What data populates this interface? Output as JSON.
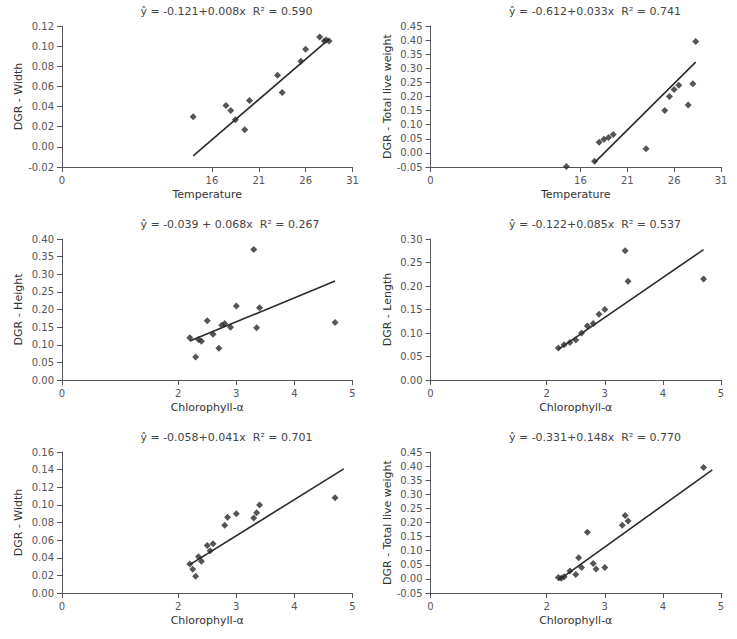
{
  "chart_data": [
    {
      "type": "scatter",
      "xlabel": "Temperature",
      "ylabel": "DGR - Width",
      "annotation": "ŷ = -0.121+0.008x  R² = 0.590",
      "xlim": [
        0,
        31
      ],
      "ylim": [
        -0.02,
        0.12
      ],
      "xticks": [
        0,
        16,
        21,
        26,
        31
      ],
      "yticks": [
        -0.02,
        {
          "value": 0,
          "label": "0.00"
        },
        0.02,
        0.04,
        0.06,
        0.08,
        {
          "value": 0.1,
          "label": "0.10"
        },
        0.12
      ],
      "grid": false,
      "series": [
        {
          "type": "line",
          "line_style": "solid",
          "color": "#2b2b2b",
          "x": [
            14.0,
            28.5
          ],
          "values": [
            -0.009,
            0.107
          ]
        },
        {
          "type": "scatter",
          "marker": "diamond",
          "color": "#2b2b2b",
          "x": [
            14.0,
            17.5,
            18.0,
            18.5,
            19.5,
            20.0,
            23.0,
            23.5,
            25.5,
            26.0,
            27.5,
            28.0,
            28.2,
            28.5
          ],
          "values": [
            0.03,
            0.041,
            0.036,
            0.027,
            0.017,
            0.046,
            0.071,
            0.054,
            0.085,
            0.097,
            0.109,
            0.105,
            0.106,
            0.105
          ]
        }
      ]
    },
    {
      "type": "scatter",
      "xlabel": "Temperature",
      "ylabel": "DGR - Total live weight",
      "annotation": "ŷ = -0.612+0.033x  R² = 0.741",
      "xlim": [
        0,
        31
      ],
      "ylim": [
        -0.05,
        0.45
      ],
      "xticks": [
        0,
        16,
        21,
        26,
        31
      ],
      "yticks": [
        -0.05,
        {
          "value": 0,
          "label": "0.00"
        },
        0.05,
        {
          "value": 0.1,
          "label": "0.10"
        },
        0.15,
        {
          "value": 0.2,
          "label": "0.20"
        },
        0.25,
        {
          "value": 0.3,
          "label": "0.30"
        },
        0.35,
        {
          "value": 0.4,
          "label": "0.40"
        },
        0.45
      ],
      "grid": false,
      "series": [
        {
          "type": "line",
          "line_style": "solid",
          "color": "#2b2b2b",
          "x": [
            17.5,
            28.3
          ],
          "values": [
            -0.0345,
            0.3219
          ]
        },
        {
          "type": "scatter",
          "marker": "diamond",
          "color": "#2b2b2b",
          "x": [
            14.5,
            17.5,
            18.0,
            18.5,
            19.0,
            19.5,
            23.0,
            25.0,
            25.5,
            26.0,
            26.5,
            27.5,
            28.0,
            28.3
          ],
          "values": [
            -0.048,
            -0.03,
            0.038,
            0.048,
            0.055,
            0.065,
            0.015,
            0.15,
            0.2,
            0.225,
            0.24,
            0.17,
            0.245,
            0.395
          ]
        }
      ]
    },
    {
      "type": "scatter",
      "xlabel": "Chlorophyll-α",
      "ylabel": "DGR - Height",
      "annotation": "ŷ = -0.039 + 0.068x  R² = 0.267",
      "xlim": [
        0,
        5
      ],
      "ylim": [
        0,
        0.4
      ],
      "xticks": [
        0,
        2,
        3,
        4,
        5
      ],
      "yticks": [
        {
          "value": 0,
          "label": "0.00"
        },
        0.05,
        {
          "value": 0.1,
          "label": "0.10"
        },
        0.15,
        {
          "value": 0.2,
          "label": "0.20"
        },
        0.25,
        {
          "value": 0.3,
          "label": "0.30"
        },
        0.35,
        {
          "value": 0.4,
          "label": "0.40"
        }
      ],
      "grid": false,
      "series": [
        {
          "type": "line",
          "line_style": "solid",
          "color": "#2b2b2b",
          "x": [
            2.2,
            4.7
          ],
          "values": [
            0.1106,
            0.2806
          ]
        },
        {
          "type": "scatter",
          "marker": "diamond",
          "color": "#2b2b2b",
          "x": [
            2.2,
            2.3,
            2.35,
            2.4,
            2.5,
            2.6,
            2.7,
            2.75,
            2.8,
            2.9,
            3.0,
            3.3,
            3.35,
            3.4,
            4.7
          ],
          "values": [
            0.12,
            0.065,
            0.115,
            0.11,
            0.168,
            0.13,
            0.09,
            0.155,
            0.16,
            0.15,
            0.21,
            0.37,
            0.148,
            0.205,
            0.163
          ]
        }
      ]
    },
    {
      "type": "scatter",
      "xlabel": "Chlorophyll-α",
      "ylabel": "DGR - Length",
      "annotation": "ŷ = -0.122+0.085x  R² = 0.537",
      "xlim": [
        0,
        5
      ],
      "ylim": [
        0,
        0.3
      ],
      "xticks": [
        0,
        2,
        3,
        4,
        5
      ],
      "yticks": [
        {
          "value": 0,
          "label": "0.00"
        },
        0.05,
        {
          "value": 0.1,
          "label": "0.10"
        },
        0.15,
        {
          "value": 0.2,
          "label": "0.20"
        },
        0.25,
        {
          "value": 0.3,
          "label": "0.30"
        }
      ],
      "grid": false,
      "series": [
        {
          "type": "line",
          "line_style": "solid",
          "color": "#2b2b2b",
          "x": [
            2.2,
            4.7
          ],
          "values": [
            0.065,
            0.2775
          ]
        },
        {
          "type": "scatter",
          "marker": "diamond",
          "color": "#2b2b2b",
          "x": [
            2.2,
            2.3,
            2.4,
            2.5,
            2.6,
            2.7,
            2.8,
            2.9,
            3.0,
            3.35,
            3.4,
            4.7
          ],
          "values": [
            0.068,
            0.075,
            0.08,
            0.085,
            0.1,
            0.115,
            0.12,
            0.14,
            0.15,
            0.275,
            0.21,
            0.215
          ]
        }
      ]
    },
    {
      "type": "scatter",
      "xlabel": "Chlorophyll-α",
      "ylabel": "DGR - Width",
      "annotation": "ŷ = -0.058+0.041x  R² = 0.701",
      "xlim": [
        0,
        5
      ],
      "ylim": [
        0,
        0.16
      ],
      "xticks": [
        0,
        2,
        3,
        4,
        5
      ],
      "yticks": [
        {
          "value": 0,
          "label": "0.00"
        },
        0.02,
        0.04,
        0.06,
        0.08,
        {
          "value": 0.1,
          "label": "0.10"
        },
        0.12,
        0.14,
        0.16
      ],
      "grid": false,
      "series": [
        {
          "type": "line",
          "line_style": "solid",
          "color": "#2b2b2b",
          "x": [
            2.2,
            4.85
          ],
          "values": [
            0.0322,
            0.14085
          ]
        },
        {
          "type": "scatter",
          "marker": "diamond",
          "color": "#2b2b2b",
          "x": [
            2.2,
            2.25,
            2.3,
            2.35,
            2.4,
            2.5,
            2.55,
            2.6,
            2.8,
            2.85,
            3.0,
            3.3,
            3.35,
            3.4,
            4.7
          ],
          "values": [
            0.033,
            0.027,
            0.019,
            0.041,
            0.036,
            0.054,
            0.048,
            0.056,
            0.077,
            0.086,
            0.09,
            0.085,
            0.091,
            0.1,
            0.108
          ]
        }
      ]
    },
    {
      "type": "scatter",
      "xlabel": "Chlorophyll-α",
      "ylabel": "DGR - Total live weight",
      "annotation": "ŷ = -0.331+0.148x  R² = 0.770",
      "xlim": [
        0,
        5
      ],
      "ylim": [
        -0.05,
        0.45
      ],
      "xticks": [
        0,
        2,
        3,
        4,
        5
      ],
      "yticks": [
        -0.05,
        {
          "value": 0,
          "label": "0.00"
        },
        0.05,
        {
          "value": 0.1,
          "label": "0.10"
        },
        0.15,
        {
          "value": 0.2,
          "label": "0.20"
        },
        0.25,
        {
          "value": 0.3,
          "label": "0.30"
        },
        0.35,
        {
          "value": 0.4,
          "label": "0.40"
        },
        0.45
      ],
      "grid": false,
      "series": [
        {
          "type": "line",
          "line_style": "solid",
          "color": "#2b2b2b",
          "x": [
            2.2,
            4.85
          ],
          "values": [
            -0.0054,
            0.3868
          ]
        },
        {
          "type": "scatter",
          "marker": "diamond",
          "color": "#2b2b2b",
          "x": [
            2.2,
            2.25,
            2.3,
            2.4,
            2.5,
            2.55,
            2.6,
            2.7,
            2.8,
            2.85,
            3.0,
            3.3,
            3.35,
            3.4,
            4.7
          ],
          "values": [
            0.005,
            0.002,
            0.008,
            0.028,
            0.016,
            0.075,
            0.04,
            0.165,
            0.055,
            0.035,
            0.04,
            0.19,
            0.225,
            0.205,
            0.395
          ]
        }
      ]
    }
  ]
}
